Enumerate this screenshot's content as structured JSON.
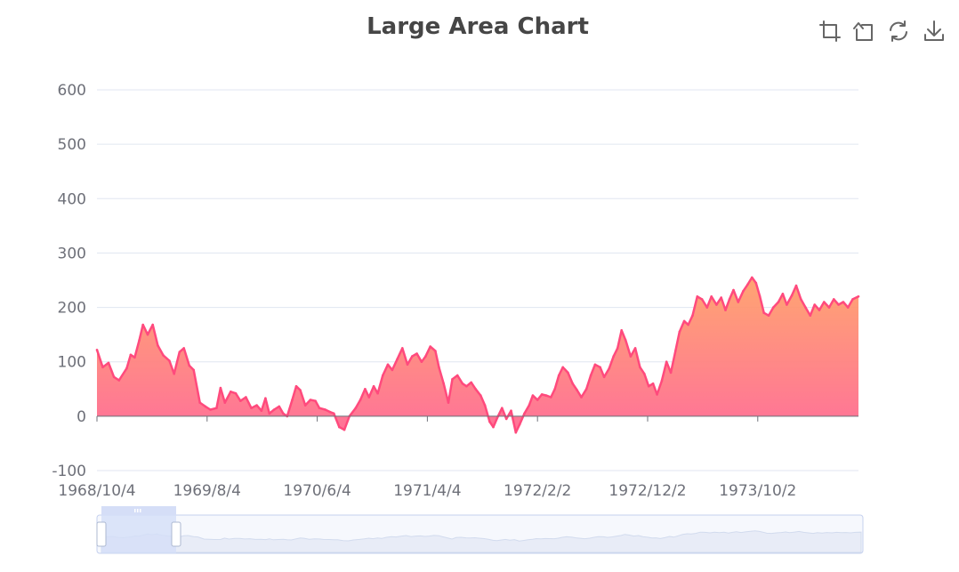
{
  "colors": {
    "line": "#ff4a7d",
    "area_top": "#ffa06a",
    "area_bottom": "#ff6a93",
    "grid": "#e0e6f1",
    "text": "#6e7079",
    "title": "#464646",
    "zoom_fill": "#d5def7",
    "zoom_border": "#c4d0ee"
  },
  "toolbar": {
    "items": [
      {
        "name": "zoom",
        "icon": "zoom-select-icon"
      },
      {
        "name": "back",
        "icon": "zoom-reset-icon"
      },
      {
        "name": "restore",
        "icon": "restore-icon"
      },
      {
        "name": "save",
        "icon": "download-icon"
      }
    ]
  },
  "chart_data": {
    "type": "area",
    "title": "Large Area Chart",
    "ylim": [
      -100,
      600
    ],
    "yticks": [
      "600",
      "500",
      "400",
      "300",
      "200",
      "100",
      "0",
      "-100"
    ],
    "yticks_values": [
      600,
      500,
      400,
      300,
      200,
      100,
      0,
      -100
    ],
    "x_tick_labels": [
      "1968/10/4",
      "1969/8/4",
      "1970/6/4",
      "1971/4/4",
      "1972/2/2",
      "1972/12/2",
      "1973/10/2"
    ],
    "x_tick_dates": [
      "1968-10-04",
      "1969-08-04",
      "1970-06-04",
      "1971-04-04",
      "1972-02-02",
      "1972-12-02",
      "1973-10-02"
    ],
    "x_range": [
      "1968-10-04",
      "1974-07-07"
    ],
    "grid": true,
    "datazoom": {
      "start": 0,
      "end": 10
    },
    "series": [
      {
        "values": [
          [
            "1968-10-04",
            122
          ],
          [
            "1968-10-20",
            90
          ],
          [
            "1968-11-05",
            98
          ],
          [
            "1968-11-20",
            72
          ],
          [
            "1968-12-04",
            66
          ],
          [
            "1968-12-25",
            88
          ],
          [
            "1969-01-05",
            113
          ],
          [
            "1969-01-16",
            108
          ],
          [
            "1969-01-29",
            140
          ],
          [
            "1969-02-08",
            168
          ],
          [
            "1969-02-21",
            150
          ],
          [
            "1969-03-07",
            168
          ],
          [
            "1969-03-21",
            130
          ],
          [
            "1969-04-05",
            112
          ],
          [
            "1969-04-22",
            102
          ],
          [
            "1969-05-05",
            78
          ],
          [
            "1969-05-20",
            118
          ],
          [
            "1969-06-01",
            125
          ],
          [
            "1969-06-16",
            93
          ],
          [
            "1969-06-28",
            85
          ],
          [
            "1969-07-15",
            25
          ],
          [
            "1969-07-30",
            18
          ],
          [
            "1969-08-13",
            12
          ],
          [
            "1969-08-30",
            15
          ],
          [
            "1969-09-10",
            52
          ],
          [
            "1969-09-22",
            25
          ],
          [
            "1969-10-08",
            45
          ],
          [
            "1969-10-22",
            42
          ],
          [
            "1969-11-04",
            28
          ],
          [
            "1969-11-19",
            35
          ],
          [
            "1969-12-04",
            15
          ],
          [
            "1969-12-19",
            20
          ],
          [
            "1970-01-01",
            10
          ],
          [
            "1970-01-12",
            33
          ],
          [
            "1970-01-23",
            5
          ],
          [
            "1970-02-05",
            12
          ],
          [
            "1970-02-19",
            18
          ],
          [
            "1970-03-02",
            5
          ],
          [
            "1970-03-13",
            0
          ],
          [
            "1970-03-27",
            30
          ],
          [
            "1970-04-07",
            55
          ],
          [
            "1970-04-18",
            48
          ],
          [
            "1970-05-02",
            20
          ],
          [
            "1970-05-16",
            30
          ],
          [
            "1970-05-30",
            28
          ],
          [
            "1970-06-10",
            15
          ],
          [
            "1970-06-26",
            12
          ],
          [
            "1970-07-09",
            8
          ],
          [
            "1970-07-20",
            5
          ],
          [
            "1970-08-04",
            -20
          ],
          [
            "1970-08-18",
            -25
          ],
          [
            "1970-09-01",
            0
          ],
          [
            "1970-09-18",
            15
          ],
          [
            "1970-10-01",
            30
          ],
          [
            "1970-10-14",
            50
          ],
          [
            "1970-10-25",
            35
          ],
          [
            "1970-11-07",
            55
          ],
          [
            "1970-11-18",
            42
          ],
          [
            "1970-12-02",
            75
          ],
          [
            "1970-12-16",
            95
          ],
          [
            "1970-12-28",
            85
          ],
          [
            "1971-01-11",
            105
          ],
          [
            "1971-01-25",
            125
          ],
          [
            "1971-02-08",
            95
          ],
          [
            "1971-02-21",
            110
          ],
          [
            "1971-03-06",
            115
          ],
          [
            "1971-03-19",
            100
          ],
          [
            "1971-03-30",
            110
          ],
          [
            "1971-04-12",
            128
          ],
          [
            "1971-04-26",
            120
          ],
          [
            "1971-05-06",
            90
          ],
          [
            "1971-05-19",
            60
          ],
          [
            "1971-06-01",
            25
          ],
          [
            "1971-06-12",
            68
          ],
          [
            "1971-06-26",
            75
          ],
          [
            "1971-07-10",
            60
          ],
          [
            "1971-07-21",
            55
          ],
          [
            "1971-08-03",
            62
          ],
          [
            "1971-08-15",
            50
          ],
          [
            "1971-08-29",
            38
          ],
          [
            "1971-09-10",
            20
          ],
          [
            "1971-09-23",
            -10
          ],
          [
            "1971-10-03",
            -20
          ],
          [
            "1971-10-16",
            0
          ],
          [
            "1971-10-27",
            15
          ],
          [
            "1971-11-08",
            -5
          ],
          [
            "1971-11-21",
            10
          ],
          [
            "1971-12-04",
            -30
          ],
          [
            "1971-12-15",
            -15
          ],
          [
            "1971-12-28",
            5
          ],
          [
            "1972-01-10",
            20
          ],
          [
            "1972-01-20",
            38
          ],
          [
            "1972-02-02",
            30
          ],
          [
            "1972-02-14",
            40
          ],
          [
            "1972-02-26",
            38
          ],
          [
            "1972-03-10",
            35
          ],
          [
            "1972-03-21",
            50
          ],
          [
            "1972-04-01",
            75
          ],
          [
            "1972-04-12",
            90
          ],
          [
            "1972-04-26",
            80
          ],
          [
            "1972-05-09",
            60
          ],
          [
            "1972-05-21",
            48
          ],
          [
            "1972-06-02",
            35
          ],
          [
            "1972-06-16",
            50
          ],
          [
            "1972-06-28",
            75
          ],
          [
            "1972-07-10",
            95
          ],
          [
            "1972-07-24",
            90
          ],
          [
            "1972-08-04",
            72
          ],
          [
            "1972-08-18",
            88
          ],
          [
            "1972-08-30",
            110
          ],
          [
            "1972-09-10",
            125
          ],
          [
            "1972-09-21",
            158
          ],
          [
            "1972-10-02",
            140
          ],
          [
            "1972-10-16",
            110
          ],
          [
            "1972-10-29",
            125
          ],
          [
            "1972-11-11",
            90
          ],
          [
            "1972-11-23",
            78
          ],
          [
            "1972-12-05",
            55
          ],
          [
            "1972-12-17",
            60
          ],
          [
            "1972-12-28",
            40
          ],
          [
            "1973-01-10",
            65
          ],
          [
            "1973-01-23",
            100
          ],
          [
            "1973-02-04",
            80
          ],
          [
            "1973-02-17",
            120
          ],
          [
            "1973-02-28",
            155
          ],
          [
            "1973-03-13",
            175
          ],
          [
            "1973-03-24",
            168
          ],
          [
            "1973-04-05",
            185
          ],
          [
            "1973-04-18",
            220
          ],
          [
            "1973-05-01",
            215
          ],
          [
            "1973-05-15",
            200
          ],
          [
            "1973-05-27",
            220
          ],
          [
            "1973-06-10",
            205
          ],
          [
            "1973-06-23",
            218
          ],
          [
            "1973-07-05",
            195
          ],
          [
            "1973-07-16",
            215
          ],
          [
            "1973-07-27",
            232
          ],
          [
            "1973-08-09",
            210
          ],
          [
            "1973-08-23",
            230
          ],
          [
            "1973-09-04",
            242
          ],
          [
            "1973-09-16",
            255
          ],
          [
            "1973-09-27",
            245
          ],
          [
            "1973-10-08",
            220
          ],
          [
            "1973-10-19",
            190
          ],
          [
            "1973-11-01",
            185
          ],
          [
            "1973-11-14",
            200
          ],
          [
            "1973-11-28",
            210
          ],
          [
            "1973-12-10",
            225
          ],
          [
            "1973-12-21",
            205
          ],
          [
            "1974-01-04",
            222
          ],
          [
            "1974-01-16",
            240
          ],
          [
            "1974-01-29",
            215
          ],
          [
            "1974-02-11",
            200
          ],
          [
            "1974-02-24",
            185
          ],
          [
            "1974-03-08",
            205
          ],
          [
            "1974-03-21",
            195
          ],
          [
            "1974-04-03",
            210
          ],
          [
            "1974-04-17",
            200
          ],
          [
            "1974-04-30",
            215
          ],
          [
            "1974-05-13",
            205
          ],
          [
            "1974-05-26",
            210
          ],
          [
            "1974-06-08",
            200
          ],
          [
            "1974-06-21",
            215
          ],
          [
            "1974-07-07",
            220
          ]
        ]
      }
    ]
  }
}
